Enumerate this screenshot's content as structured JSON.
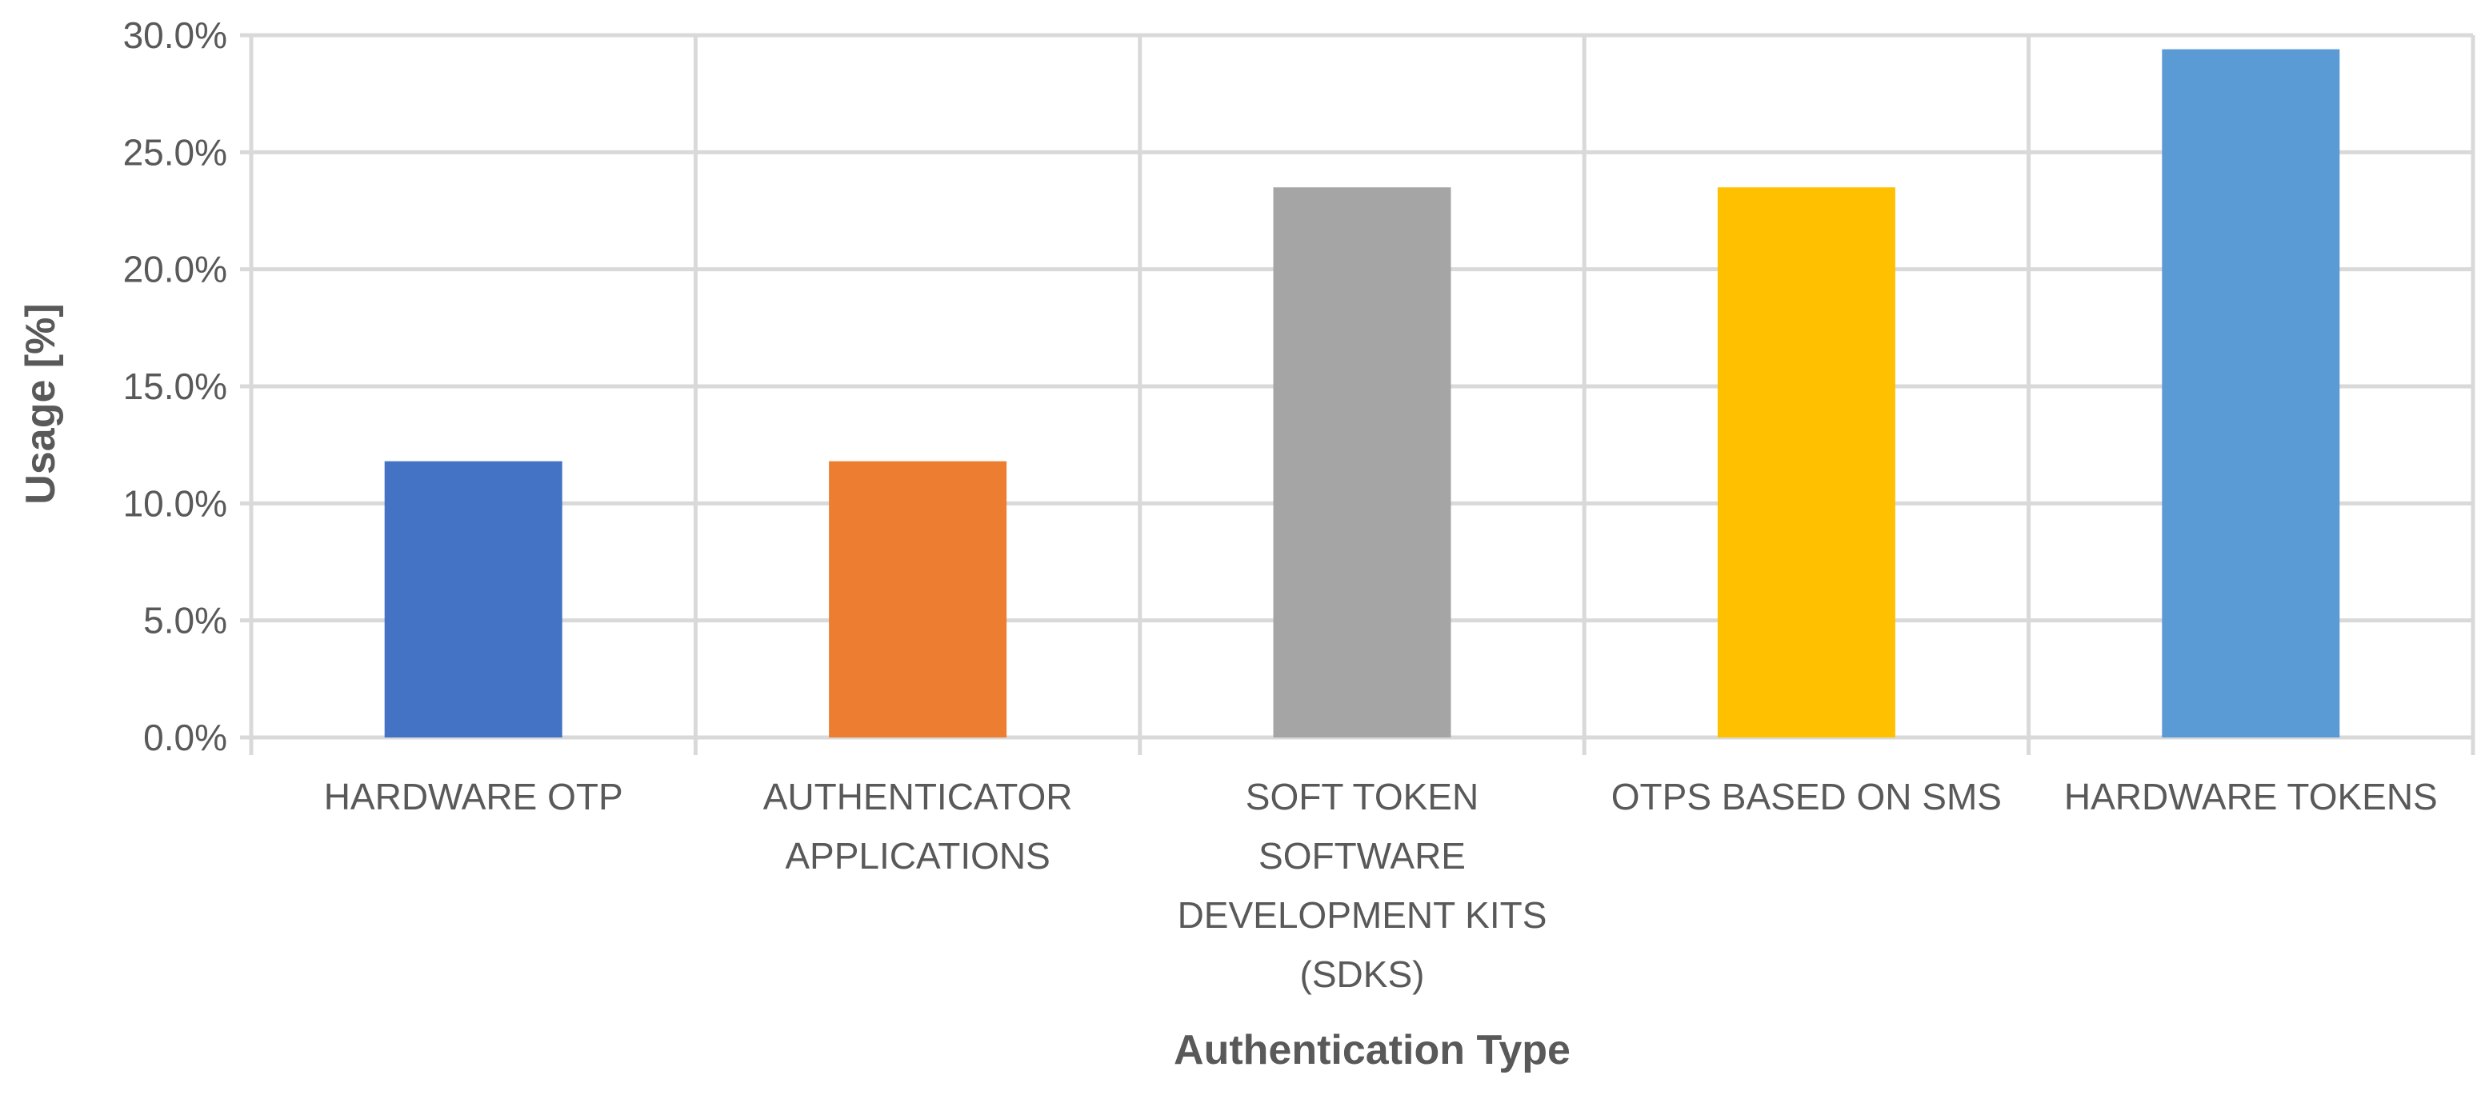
{
  "chart_data": {
    "type": "bar",
    "categories": [
      [
        "HARDWARE OTP"
      ],
      [
        "AUTHENTICATOR",
        "APPLICATIONS"
      ],
      [
        "SOFT TOKEN",
        "SOFTWARE",
        "DEVELOPMENT KITS",
        "(SDKS)"
      ],
      [
        "OTPS BASED ON SMS"
      ],
      [
        "HARDWARE TOKENS"
      ]
    ],
    "values": [
      11.8,
      11.8,
      23.5,
      23.5,
      29.4
    ],
    "colors": [
      "#4472C4",
      "#ED7D31",
      "#A5A5A5",
      "#FFC000",
      "#5B9BD5"
    ],
    "xlabel": "Authentication Type",
    "ylabel": "Usage [%]",
    "ylim": [
      0,
      30
    ],
    "yticks": [
      "0.0%",
      "5.0%",
      "10.0%",
      "15.0%",
      "20.0%",
      "25.0%",
      "30.0%"
    ],
    "grid": true
  }
}
